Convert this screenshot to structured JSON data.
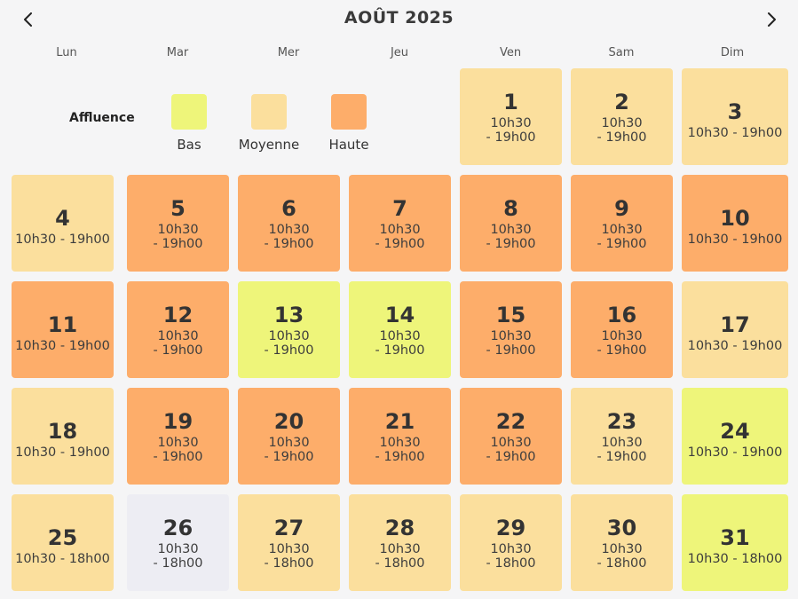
{
  "header": {
    "title": "AOÛT 2025",
    "prev_icon": "chevron-left-icon",
    "next_icon": "chevron-right-icon"
  },
  "weekdays": [
    "Lun",
    "Mar",
    "Mer",
    "Jeu",
    "Ven",
    "Sam",
    "Dim"
  ],
  "legend": {
    "title": "Affluence",
    "items": [
      {
        "label": "Bas",
        "color": "#eef57a"
      },
      {
        "label": "Moyenne",
        "color": "#fbdf9d"
      },
      {
        "label": "Haute",
        "color": "#fdad6a"
      }
    ]
  },
  "colors": {
    "bas": "#eef57a",
    "moyenne": "#fbdf9d",
    "haute": "#fdad6a",
    "ferme": "#ededf3"
  },
  "first_weekday_index": 4,
  "days": [
    {
      "num": "1",
      "hours": "10h30\n- 19h00",
      "level": "moyenne"
    },
    {
      "num": "2",
      "hours": "10h30\n- 19h00",
      "level": "moyenne"
    },
    {
      "num": "3",
      "hours": "10h30 - 19h00",
      "level": "moyenne"
    },
    {
      "num": "4",
      "hours": "10h30 - 19h00",
      "level": "moyenne"
    },
    {
      "num": "5",
      "hours": "10h30\n- 19h00",
      "level": "haute"
    },
    {
      "num": "6",
      "hours": "10h30\n- 19h00",
      "level": "haute"
    },
    {
      "num": "7",
      "hours": "10h30\n- 19h00",
      "level": "haute"
    },
    {
      "num": "8",
      "hours": "10h30\n- 19h00",
      "level": "haute"
    },
    {
      "num": "9",
      "hours": "10h30\n- 19h00",
      "level": "haute"
    },
    {
      "num": "10",
      "hours": "10h30 - 19h00",
      "level": "haute"
    },
    {
      "num": "11",
      "hours": "10h30 - 19h00",
      "level": "haute"
    },
    {
      "num": "12",
      "hours": "10h30\n- 19h00",
      "level": "haute"
    },
    {
      "num": "13",
      "hours": "10h30\n- 19h00",
      "level": "bas"
    },
    {
      "num": "14",
      "hours": "10h30\n- 19h00",
      "level": "bas"
    },
    {
      "num": "15",
      "hours": "10h30\n- 19h00",
      "level": "haute"
    },
    {
      "num": "16",
      "hours": "10h30\n- 19h00",
      "level": "haute"
    },
    {
      "num": "17",
      "hours": "10h30 - 19h00",
      "level": "moyenne"
    },
    {
      "num": "18",
      "hours": "10h30 - 19h00",
      "level": "moyenne"
    },
    {
      "num": "19",
      "hours": "10h30\n- 19h00",
      "level": "haute"
    },
    {
      "num": "20",
      "hours": "10h30\n- 19h00",
      "level": "haute"
    },
    {
      "num": "21",
      "hours": "10h30\n- 19h00",
      "level": "haute"
    },
    {
      "num": "22",
      "hours": "10h30\n- 19h00",
      "level": "haute"
    },
    {
      "num": "23",
      "hours": "10h30\n- 19h00",
      "level": "moyenne"
    },
    {
      "num": "24",
      "hours": "10h30 - 19h00",
      "level": "bas"
    },
    {
      "num": "25",
      "hours": "10h30 - 18h00",
      "level": "moyenne"
    },
    {
      "num": "26",
      "hours": "10h30\n- 18h00",
      "level": "ferme"
    },
    {
      "num": "27",
      "hours": "10h30\n- 18h00",
      "level": "moyenne"
    },
    {
      "num": "28",
      "hours": "10h30\n- 18h00",
      "level": "moyenne"
    },
    {
      "num": "29",
      "hours": "10h30\n- 18h00",
      "level": "moyenne"
    },
    {
      "num": "30",
      "hours": "10h30\n- 18h00",
      "level": "moyenne"
    },
    {
      "num": "31",
      "hours": "10h30 - 18h00",
      "level": "bas"
    }
  ]
}
